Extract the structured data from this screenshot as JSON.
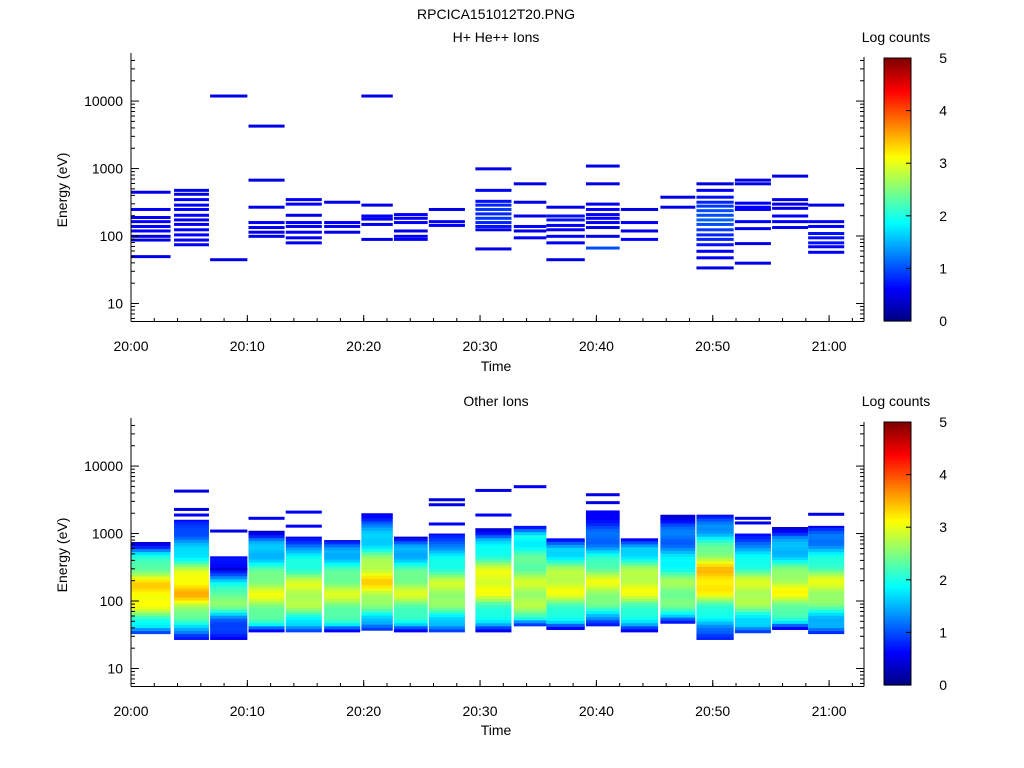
{
  "figure": {
    "title": "RPCICA151012T20.PNG"
  },
  "colorbar": {
    "label": "Log counts",
    "ticks": [
      0,
      1,
      2,
      3,
      4,
      5
    ],
    "range": [
      0,
      5
    ],
    "colormap": "jet"
  },
  "chart_data": [
    {
      "type": "heatmap",
      "title": "H+ He++ Ions",
      "xlabel": "Time",
      "ylabel": "Energy (eV)",
      "yscale": "log",
      "ylim": [
        5.5,
        45000
      ],
      "xlim": [
        "20:00",
        "21:03"
      ],
      "xticks": [
        "20:00",
        "20:10",
        "20:20",
        "20:30",
        "20:40",
        "20:50",
        "21:00"
      ],
      "yticks": [
        10,
        100,
        1000,
        10000
      ],
      "colorbar_label": "Log counts",
      "color_range": [
        0,
        5
      ],
      "time_bins_start": [
        "20:00",
        "20:03.7",
        "20:06.8",
        "20:10.1",
        "20:13.3",
        "20:16.6",
        "20:19.8",
        "20:22.6",
        "20:25.6",
        "20:29.6",
        "20:32.9",
        "20:35.7",
        "20:39.1",
        "20:42.1",
        "20:45.5",
        "20:48.6",
        "20:51.9",
        "20:55.1",
        "20:58.2"
      ],
      "time_bins_end": [
        "20:03.4",
        "20:06.7",
        "20:10.0",
        "20:13.2",
        "20:16.4",
        "20:19.7",
        "20:22.5",
        "20:25.5",
        "20:28.7",
        "20:32.7",
        "20:35.7",
        "20:39.0",
        "20:42.0",
        "20:45.3",
        "20:48.5",
        "20:51.8",
        "20:55.0",
        "20:58.2",
        "21:01.3"
      ],
      "cells": [
        [
          [
            450,
            450,
            0.5
          ],
          [
            250,
            250,
            0.6
          ],
          [
            190,
            190,
            0.6
          ],
          [
            165,
            165,
            0.6
          ],
          [
            140,
            140,
            0.6
          ],
          [
            120,
            120,
            0.6
          ],
          [
            100,
            100,
            0.5
          ],
          [
            88,
            88,
            0.5
          ],
          [
            50,
            50,
            0.5
          ]
        ],
        [
          [
            480,
            480,
            0.5
          ],
          [
            420,
            420,
            0.5
          ],
          [
            350,
            350,
            0.6
          ],
          [
            290,
            290,
            0.6
          ],
          [
            250,
            250,
            0.6
          ],
          [
            205,
            205,
            0.6
          ],
          [
            175,
            175,
            0.6
          ],
          [
            150,
            150,
            0.6
          ],
          [
            125,
            125,
            0.6
          ],
          [
            105,
            105,
            0.6
          ],
          [
            88,
            88,
            0.6
          ],
          [
            75,
            75,
            0.6
          ]
        ],
        [
          [
            12000,
            12000,
            0.5
          ],
          [
            45,
            45,
            0.5
          ]
        ],
        [
          [
            4300,
            4300,
            0.5
          ],
          [
            680,
            680,
            0.5
          ],
          [
            270,
            270,
            0.5
          ],
          [
            160,
            160,
            0.6
          ],
          [
            135,
            135,
            0.6
          ],
          [
            115,
            115,
            0.5
          ],
          [
            100,
            100,
            0.5
          ]
        ],
        [
          [
            350,
            350,
            0.6
          ],
          [
            300,
            300,
            0.6
          ],
          [
            205,
            205,
            0.5
          ],
          [
            160,
            160,
            0.6
          ],
          [
            140,
            140,
            0.6
          ],
          [
            115,
            115,
            0.6
          ],
          [
            95,
            95,
            0.6
          ],
          [
            80,
            80,
            0.6
          ]
        ],
        [
          [
            320,
            320,
            0.5
          ],
          [
            160,
            160,
            0.6
          ],
          [
            140,
            140,
            0.6
          ],
          [
            115,
            115,
            0.5
          ]
        ],
        [
          [
            12000,
            12000,
            0.5
          ],
          [
            290,
            290,
            0.5
          ],
          [
            200,
            200,
            0.6
          ],
          [
            180,
            180,
            0.6
          ],
          [
            150,
            150,
            0.5
          ],
          [
            90,
            90,
            0.5
          ]
        ],
        [
          [
            210,
            210,
            0.6
          ],
          [
            185,
            185,
            0.6
          ],
          [
            160,
            160,
            0.6
          ],
          [
            120,
            120,
            0.5
          ],
          [
            100,
            100,
            0.6
          ],
          [
            90,
            90,
            0.6
          ]
        ],
        [
          [
            250,
            250,
            0.5
          ],
          [
            165,
            165,
            0.6
          ],
          [
            145,
            145,
            0.6
          ]
        ],
        [
          [
            1000,
            1000,
            0.5
          ],
          [
            480,
            480,
            0.6
          ],
          [
            330,
            330,
            0.7
          ],
          [
            290,
            290,
            0.8
          ],
          [
            250,
            250,
            0.9
          ],
          [
            215,
            215,
            0.8
          ],
          [
            185,
            185,
            0.9
          ],
          [
            160,
            160,
            0.8
          ],
          [
            140,
            140,
            0.7
          ],
          [
            125,
            125,
            0.6
          ],
          [
            65,
            65,
            0.5
          ]
        ],
        [
          [
            600,
            600,
            0.5
          ],
          [
            320,
            320,
            0.5
          ],
          [
            200,
            200,
            0.5
          ],
          [
            140,
            140,
            0.6
          ],
          [
            120,
            120,
            0.5
          ],
          [
            95,
            95,
            0.6
          ]
        ],
        [
          [
            270,
            270,
            0.5
          ],
          [
            200,
            200,
            0.7
          ],
          [
            175,
            175,
            0.7
          ],
          [
            145,
            145,
            0.6
          ],
          [
            125,
            125,
            0.6
          ],
          [
            100,
            100,
            0.6
          ],
          [
            80,
            80,
            0.6
          ],
          [
            45,
            45,
            0.5
          ]
        ],
        [
          [
            1100,
            1100,
            0.5
          ],
          [
            600,
            600,
            0.5
          ],
          [
            300,
            300,
            0.6
          ],
          [
            250,
            250,
            0.6
          ],
          [
            210,
            210,
            0.6
          ],
          [
            185,
            185,
            0.6
          ],
          [
            160,
            160,
            0.6
          ],
          [
            135,
            135,
            0.5
          ],
          [
            100,
            100,
            0.5
          ],
          [
            67,
            67,
            1.0
          ]
        ],
        [
          [
            250,
            250,
            0.5
          ],
          [
            160,
            160,
            0.6
          ],
          [
            120,
            120,
            0.5
          ],
          [
            90,
            90,
            0.6
          ]
        ],
        [
          [
            380,
            380,
            0.5
          ],
          [
            270,
            270,
            0.5
          ]
        ],
        [
          [
            600,
            600,
            0.5
          ],
          [
            480,
            480,
            0.6
          ],
          [
            380,
            380,
            0.7
          ],
          [
            320,
            320,
            0.8
          ],
          [
            280,
            280,
            0.9
          ],
          [
            240,
            240,
            1.0
          ],
          [
            205,
            205,
            1.0
          ],
          [
            175,
            175,
            1.1
          ],
          [
            150,
            150,
            1.0
          ],
          [
            125,
            125,
            0.9
          ],
          [
            105,
            105,
            0.8
          ],
          [
            90,
            90,
            0.8
          ],
          [
            75,
            75,
            0.7
          ],
          [
            60,
            60,
            0.6
          ],
          [
            48,
            48,
            0.6
          ],
          [
            34,
            34,
            0.5
          ]
        ],
        [
          [
            680,
            680,
            0.5
          ],
          [
            600,
            600,
            0.5
          ],
          [
            310,
            310,
            0.6
          ],
          [
            270,
            270,
            0.6
          ],
          [
            250,
            250,
            0.6
          ],
          [
            165,
            165,
            0.6
          ],
          [
            130,
            130,
            0.6
          ],
          [
            78,
            78,
            0.5
          ],
          [
            40,
            40,
            0.5
          ]
        ],
        [
          [
            780,
            780,
            0.5
          ],
          [
            350,
            350,
            0.5
          ],
          [
            300,
            300,
            0.5
          ],
          [
            260,
            260,
            0.5
          ],
          [
            200,
            200,
            0.6
          ],
          [
            165,
            165,
            0.6
          ],
          [
            135,
            135,
            0.6
          ]
        ],
        [
          [
            290,
            290,
            0.5
          ],
          [
            165,
            165,
            0.6
          ],
          [
            140,
            140,
            0.6
          ],
          [
            110,
            110,
            0.7
          ],
          [
            95,
            95,
            0.7
          ],
          [
            80,
            80,
            0.7
          ],
          [
            70,
            70,
            0.6
          ],
          [
            58,
            58,
            0.6
          ]
        ]
      ]
    },
    {
      "type": "heatmap",
      "title": "Other Ions",
      "xlabel": "Time",
      "ylabel": "Energy (eV)",
      "yscale": "log",
      "ylim": [
        5.5,
        45000
      ],
      "xlim": [
        "20:00",
        "21:03"
      ],
      "xticks": [
        "20:00",
        "20:10",
        "20:20",
        "20:30",
        "20:40",
        "20:50",
        "21:00"
      ],
      "yticks": [
        10,
        100,
        1000,
        10000
      ],
      "colorbar_label": "Log counts",
      "color_range": [
        0,
        5
      ],
      "time_bins_start": [
        "20:00",
        "20:03.7",
        "20:06.8",
        "20:10.1",
        "20:13.3",
        "20:16.6",
        "20:19.8",
        "20:22.6",
        "20:25.6",
        "20:29.6",
        "20:32.9",
        "20:35.7",
        "20:39.1",
        "20:42.1",
        "20:45.5",
        "20:48.6",
        "20:51.9",
        "20:55.1",
        "20:58.2"
      ],
      "time_bins_end": [
        "20:03.4",
        "20:06.7",
        "20:10.0",
        "20:13.2",
        "20:16.4",
        "20:19.7",
        "20:22.5",
        "20:25.5",
        "20:28.7",
        "20:32.7",
        "20:35.7",
        "20:39.0",
        "20:42.0",
        "20:45.3",
        "20:48.5",
        "20:51.8",
        "20:55.0",
        "20:58.2",
        "21:01.3"
      ],
      "columns": [
        {
          "top": 750,
          "bottom": 33,
          "peak_energy": 140,
          "peak": 3.3,
          "base": 1.1,
          "width": 0.5
        },
        {
          "top": 1600,
          "bottom": 27,
          "peak_energy": 150,
          "peak": 3.4,
          "base": 1.0,
          "width": 0.5,
          "extra": [
            [
              4300,
              0.5
            ],
            [
              2300,
              0.5
            ],
            [
              1900,
              0.6
            ]
          ]
        },
        {
          "top": 460,
          "bottom": 27,
          "peak_energy": 110,
          "peak": 2.6,
          "base": 0.6,
          "width": 0.3,
          "extra": [
            [
              1100,
              0.5
            ],
            [
              300,
              0.4
            ]
          ]
        },
        {
          "top": 1100,
          "bottom": 35,
          "peak_energy": 130,
          "peak": 2.9,
          "base": 1.3,
          "width": 0.45,
          "extra": [
            [
              1700,
              0.6
            ]
          ]
        },
        {
          "top": 900,
          "bottom": 35,
          "peak_energy": 140,
          "peak": 2.9,
          "base": 1.3,
          "width": 0.45,
          "extra": [
            [
              2100,
              0.6
            ],
            [
              1300,
              0.6
            ]
          ]
        },
        {
          "top": 800,
          "bottom": 35,
          "peak_energy": 130,
          "peak": 2.8,
          "base": 1.3,
          "width": 0.45
        },
        {
          "top": 2000,
          "bottom": 37,
          "peak_energy": 200,
          "peak": 3.2,
          "base": 1.2,
          "width": 0.5
        },
        {
          "top": 900,
          "bottom": 35,
          "peak_energy": 140,
          "peak": 2.8,
          "base": 1.2,
          "width": 0.45
        },
        {
          "top": 1000,
          "bottom": 35,
          "peak_energy": 150,
          "peak": 2.8,
          "base": 1.2,
          "width": 0.45,
          "extra": [
            [
              3200,
              0.5
            ],
            [
              2700,
              0.5
            ],
            [
              1400,
              0.6
            ]
          ]
        },
        {
          "top": 1200,
          "bottom": 35,
          "peak_energy": 190,
          "peak": 3.1,
          "base": 1.1,
          "width": 0.5,
          "extra": [
            [
              4400,
              0.5
            ],
            [
              1900,
              0.6
            ]
          ]
        },
        {
          "top": 1300,
          "bottom": 43,
          "peak_energy": 150,
          "peak": 2.8,
          "base": 1.8,
          "width": 0.5,
          "extra": [
            [
              5000,
              0.6
            ]
          ]
        },
        {
          "top": 850,
          "bottom": 38,
          "peak_energy": 170,
          "peak": 3.0,
          "base": 1.2,
          "width": 0.45
        },
        {
          "top": 2200,
          "bottom": 43,
          "peak_energy": 180,
          "peak": 2.9,
          "base": 0.8,
          "width": 0.5,
          "extra": [
            [
              3800,
              0.5
            ],
            [
              2900,
              0.5
            ]
          ]
        },
        {
          "top": 850,
          "bottom": 35,
          "peak_energy": 170,
          "peak": 3.0,
          "base": 1.2,
          "width": 0.45
        },
        {
          "top": 1900,
          "bottom": 47,
          "peak_energy": 150,
          "peak": 2.6,
          "base": 1.0,
          "width": 0.5
        },
        {
          "top": 1900,
          "bottom": 27,
          "peak_energy": 230,
          "peak": 3.4,
          "base": 1.0,
          "width": 0.55
        },
        {
          "top": 1000,
          "bottom": 34,
          "peak_energy": 150,
          "peak": 2.9,
          "base": 1.2,
          "width": 0.45,
          "extra": [
            [
              1700,
              0.5
            ],
            [
              1450,
              0.5
            ]
          ]
        },
        {
          "top": 1250,
          "bottom": 38,
          "peak_energy": 150,
          "peak": 3.0,
          "base": 1.2,
          "width": 0.45
        },
        {
          "top": 1300,
          "bottom": 33,
          "peak_energy": 170,
          "peak": 2.9,
          "base": 1.1,
          "width": 0.45,
          "extra": [
            [
              1950,
              0.5
            ]
          ]
        }
      ]
    }
  ]
}
